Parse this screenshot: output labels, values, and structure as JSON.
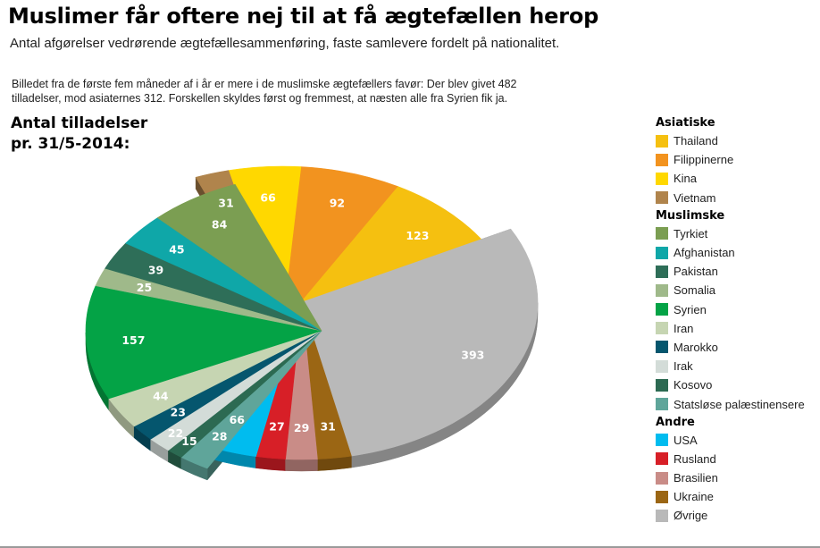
{
  "header": {
    "title": "Muslimer får oftere nej til at få ægtefællen herop",
    "subtitle": "Antal afgørelser vedrørende ægtefællesammenføring, faste samlevere fordelt på nationalitet.",
    "note": "Billedet fra de første fem måneder af i år er mere i de muslimske ægtefællers favør: Der blev givet 482 tilladelser, mod asiaternes 312. Forskellen skyldes først og fremmest, at næsten alle fra Syrien fik ja.",
    "count_title_line1": "Antal tilladelser",
    "count_title_line2": "pr. 31/5-2014:"
  },
  "chart_data": {
    "type": "pie",
    "title": "Muslimer får oftere nej til at få ægtefællen herop",
    "groups": [
      {
        "name": "Asiatiske",
        "slices": [
          {
            "label": "Thailand",
            "value": 123,
            "color": "#f5c010"
          },
          {
            "label": "Filippinerne",
            "value": 92,
            "color": "#f2931f"
          },
          {
            "label": "Kina",
            "value": 66,
            "color": "#ffd800"
          },
          {
            "label": "Vietnam",
            "value": 31,
            "color": "#b0844c"
          }
        ]
      },
      {
        "name": "Muslimske",
        "slices": [
          {
            "label": "Tyrkiet",
            "value": 84,
            "color": "#7b9e52"
          },
          {
            "label": "Afghanistan",
            "value": 45,
            "color": "#0fa7a8"
          },
          {
            "label": "Pakistan",
            "value": 39,
            "color": "#2e6e58"
          },
          {
            "label": "Somalia",
            "value": 25,
            "color": "#9fb98a"
          },
          {
            "label": "Syrien",
            "value": 157,
            "color": "#04a346"
          },
          {
            "label": "Iran",
            "value": 44,
            "color": "#c6d5b2"
          },
          {
            "label": "Marokko",
            "value": 23,
            "color": "#05566e"
          },
          {
            "label": "Irak",
            "value": 22,
            "color": "#d3dcd8"
          },
          {
            "label": "Kosovo",
            "value": 15,
            "color": "#2c6a52"
          },
          {
            "label": "Statsløse palæstinensere",
            "value": 28,
            "color": "#5fa59a"
          }
        ]
      },
      {
        "name": "Andre",
        "slices": [
          {
            "label": "USA",
            "value": 66,
            "color": "#00bcef"
          },
          {
            "label": "Rusland",
            "value": 27,
            "color": "#d71f27"
          },
          {
            "label": "Brasilien",
            "value": 29,
            "color": "#c98c87"
          },
          {
            "label": "Ukraine",
            "value": 31,
            "color": "#9b6614"
          },
          {
            "label": "Øvrige",
            "value": 393,
            "color": "#b9b9b9"
          }
        ]
      }
    ]
  }
}
